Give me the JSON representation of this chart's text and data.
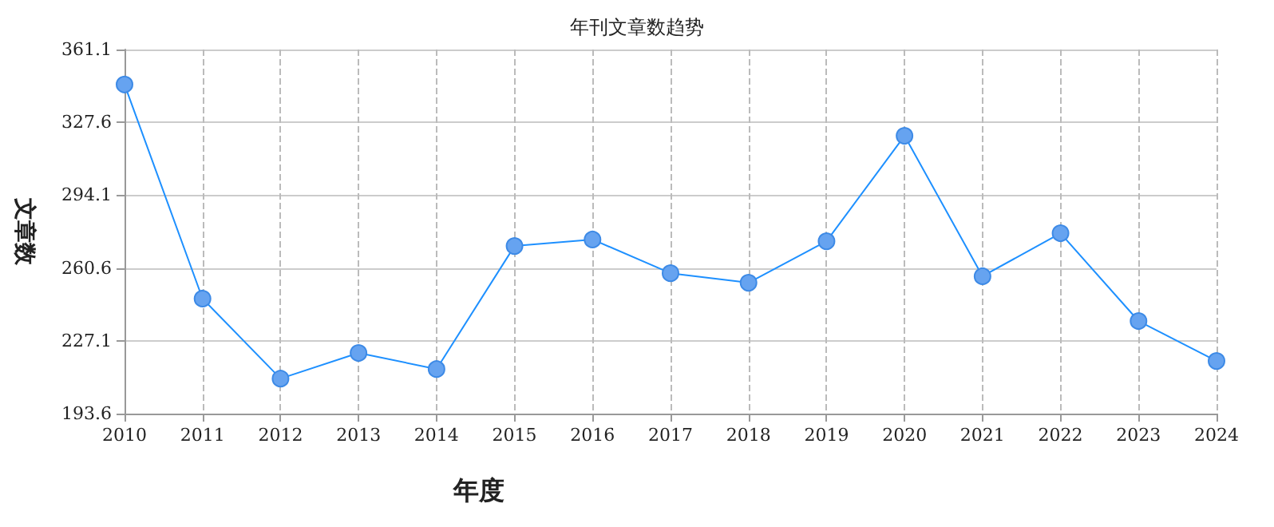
{
  "chart_data": {
    "type": "line",
    "title": "年刊文章数趋势",
    "xlabel": "年度",
    "ylabel": "文章数",
    "categories": [
      "2010",
      "2011",
      "2012",
      "2013",
      "2014",
      "2015",
      "2016",
      "2017",
      "2018",
      "2019",
      "2020",
      "2021",
      "2022",
      "2023",
      "2024"
    ],
    "series": [
      {
        "color": "#1e90ff",
        "values": [
          345,
          246.5,
          209.7,
          221.5,
          214.1,
          270.7,
          273.7,
          258.2,
          253.8,
          272.9,
          321.4,
          256.8,
          276.6,
          236.2,
          217.8
        ]
      }
    ],
    "ylim": [
      193.6,
      361.1
    ],
    "yticks": [
      193.6,
      227.1,
      260.6,
      294.1,
      327.6,
      361.1
    ],
    "grid": true,
    "marker": "circle",
    "line_style": "solid"
  }
}
